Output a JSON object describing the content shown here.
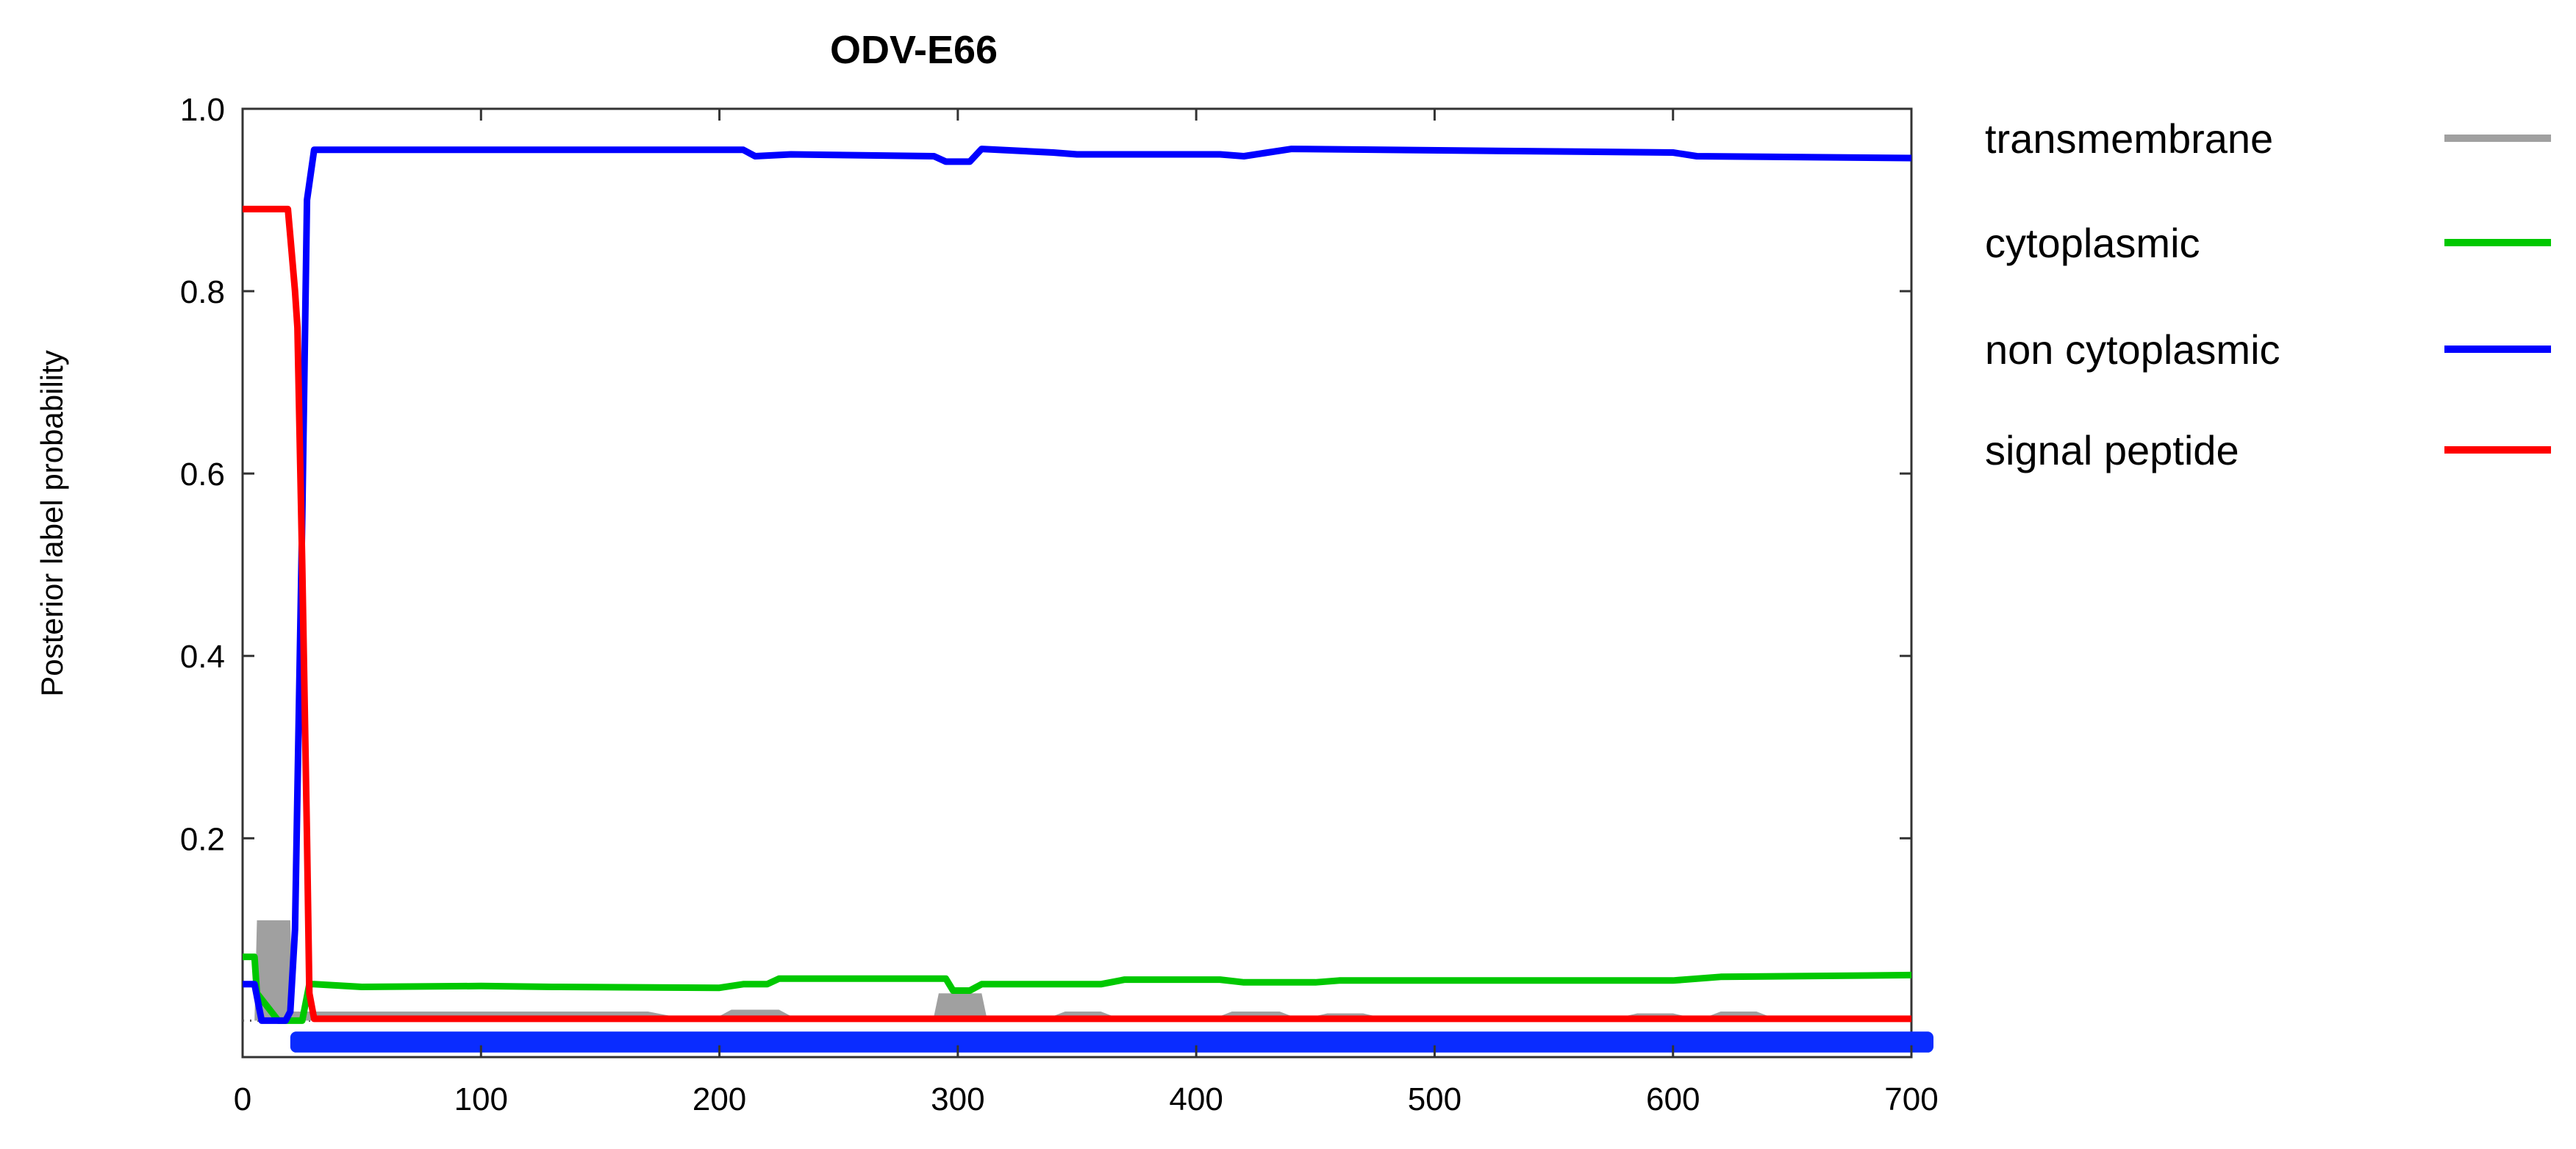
{
  "chart_data": {
    "type": "line",
    "title": "ODV-E66",
    "xlabel": "",
    "ylabel": "Posterior label probability",
    "xlim": [
      0,
      700
    ],
    "ylim": [
      -0.04,
      1.0
    ],
    "grid": false,
    "legend_position": "right",
    "x_ticks": [
      0,
      100,
      200,
      300,
      400,
      500,
      600,
      700
    ],
    "x_tick_labels": [
      "0",
      "100",
      "200",
      "300",
      "400",
      "500",
      "600",
      "700"
    ],
    "y_ticks": [
      0.2,
      0.4,
      0.6,
      0.8,
      1.0
    ],
    "y_tick_labels": [
      "0.2",
      "0.4",
      "0.6",
      "0.8",
      "1.0"
    ],
    "series": [
      {
        "name": "transmembrane",
        "color": "#a0a0a0",
        "style": "area",
        "points": [
          [
            0,
            0
          ],
          [
            5,
            0
          ],
          [
            6,
            0.11
          ],
          [
            20,
            0.11
          ],
          [
            21,
            0.01
          ],
          [
            30,
            0.01
          ],
          [
            170,
            0.01
          ],
          [
            180,
            0.005
          ],
          [
            200,
            0.005
          ],
          [
            205,
            0.012
          ],
          [
            225,
            0.012
          ],
          [
            230,
            0.005
          ],
          [
            290,
            0.005
          ],
          [
            292,
            0.03
          ],
          [
            310,
            0.03
          ],
          [
            312,
            0.005
          ],
          [
            340,
            0.005
          ],
          [
            345,
            0.01
          ],
          [
            360,
            0.01
          ],
          [
            365,
            0.005
          ],
          [
            410,
            0.005
          ],
          [
            415,
            0.01
          ],
          [
            435,
            0.01
          ],
          [
            440,
            0.005
          ],
          [
            450,
            0.005
          ],
          [
            455,
            0.008
          ],
          [
            470,
            0.008
          ],
          [
            475,
            0.005
          ],
          [
            580,
            0.005
          ],
          [
            585,
            0.008
          ],
          [
            600,
            0.008
          ],
          [
            605,
            0.005
          ],
          [
            615,
            0.005
          ],
          [
            620,
            0.01
          ],
          [
            635,
            0.01
          ],
          [
            640,
            0.005
          ],
          [
            700,
            0.005
          ],
          [
            700,
            0
          ]
        ]
      },
      {
        "name": "cytoplasmic",
        "color": "#00c800",
        "style": "line",
        "points": [
          [
            0,
            0.07
          ],
          [
            5,
            0.07
          ],
          [
            6,
            0.03
          ],
          [
            15,
            0.0
          ],
          [
            22,
            0.0
          ],
          [
            25,
            0.0
          ],
          [
            28,
            0.04
          ],
          [
            30,
            0.04
          ],
          [
            50,
            0.037
          ],
          [
            100,
            0.038
          ],
          [
            130,
            0.037
          ],
          [
            200,
            0.036
          ],
          [
            210,
            0.04
          ],
          [
            220,
            0.04
          ],
          [
            225,
            0.046
          ],
          [
            295,
            0.046
          ],
          [
            298,
            0.033
          ],
          [
            305,
            0.033
          ],
          [
            310,
            0.04
          ],
          [
            360,
            0.04
          ],
          [
            370,
            0.045
          ],
          [
            410,
            0.045
          ],
          [
            420,
            0.042
          ],
          [
            450,
            0.042
          ],
          [
            460,
            0.044
          ],
          [
            600,
            0.044
          ],
          [
            620,
            0.048
          ],
          [
            700,
            0.05
          ]
        ]
      },
      {
        "name": "non cytoplasmic",
        "color": "#0000ff",
        "style": "line",
        "points": [
          [
            0,
            0.04
          ],
          [
            5,
            0.04
          ],
          [
            8,
            0.0
          ],
          [
            18,
            0.0
          ],
          [
            20,
            0.01
          ],
          [
            22,
            0.1
          ],
          [
            25,
            0.55
          ],
          [
            27,
            0.9
          ],
          [
            30,
            0.955
          ],
          [
            210,
            0.955
          ],
          [
            215,
            0.948
          ],
          [
            230,
            0.95
          ],
          [
            290,
            0.948
          ],
          [
            295,
            0.942
          ],
          [
            305,
            0.942
          ],
          [
            310,
            0.956
          ],
          [
            340,
            0.952
          ],
          [
            350,
            0.95
          ],
          [
            410,
            0.95
          ],
          [
            420,
            0.948
          ],
          [
            430,
            0.952
          ],
          [
            440,
            0.956
          ],
          [
            600,
            0.952
          ],
          [
            610,
            0.948
          ],
          [
            700,
            0.946
          ]
        ]
      },
      {
        "name": "signal peptide",
        "color": "#ff0000",
        "style": "line",
        "points": [
          [
            0,
            0.89
          ],
          [
            19,
            0.89
          ],
          [
            20,
            0.86
          ],
          [
            22,
            0.8
          ],
          [
            23,
            0.76
          ],
          [
            25,
            0.5
          ],
          [
            27,
            0.2
          ],
          [
            28,
            0.03
          ],
          [
            30,
            0.002
          ],
          [
            700,
            0.002
          ]
        ]
      }
    ],
    "baseline_band": {
      "name": "non cytoplasmic",
      "color": "#0a2cff",
      "x_range": [
        20,
        700
      ],
      "y_range": [
        -0.035,
        -0.012
      ]
    }
  }
}
